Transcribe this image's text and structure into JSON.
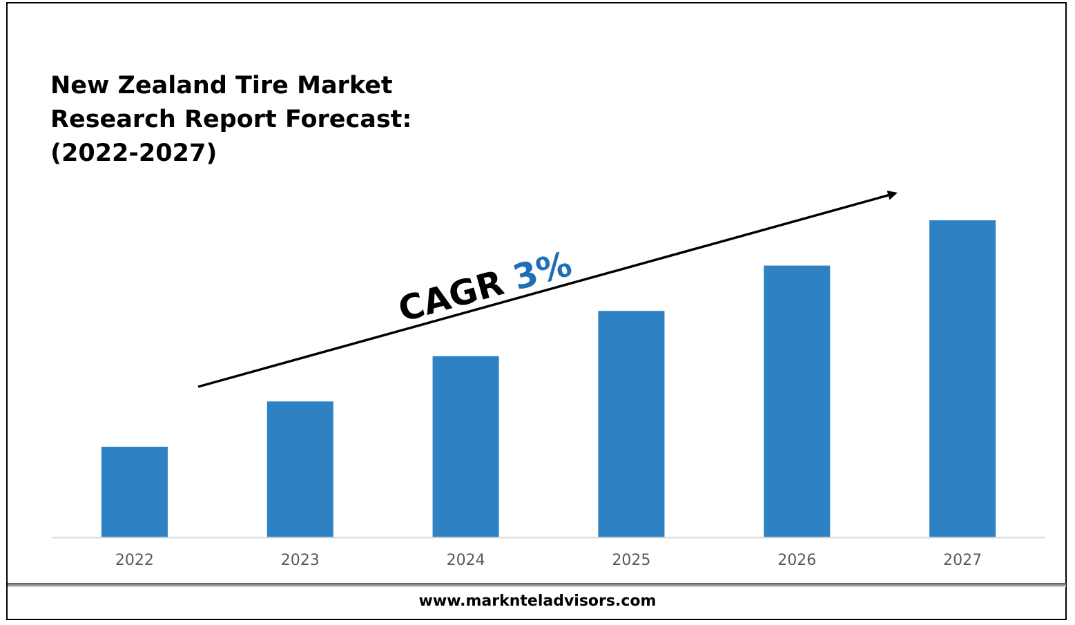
{
  "title_lines": [
    "New Zealand Tire Market",
    "Research Report Forecast:",
    "(2022-2027)"
  ],
  "footer": {
    "url": "www.marknteladvisors.com"
  },
  "colors": {
    "bar": "#2E82C3",
    "cagr_value": "#1F6FB7",
    "axis": "#D9D9D9",
    "tick_label": "#595959",
    "arrow": "#000000"
  },
  "chart_data": {
    "type": "bar",
    "categories": [
      "2022",
      "2023",
      "2024",
      "2025",
      "2026",
      "2027"
    ],
    "values": [
      1.0,
      1.5,
      2.0,
      2.5,
      3.0,
      3.5
    ],
    "ylim": [
      0,
      3.5
    ],
    "grid": false,
    "y_axis_shown": false,
    "annotation": {
      "label": "CAGR",
      "value": "3%",
      "style": "upward arrow over bars"
    }
  }
}
